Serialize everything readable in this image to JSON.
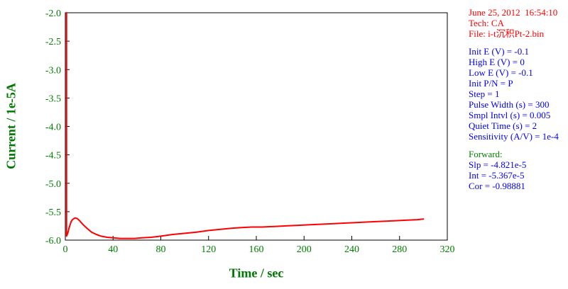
{
  "chart_data": {
    "type": "line",
    "title": "",
    "xlabel": "Time / sec",
    "ylabel": "Current / 1e-5A",
    "xlim": [
      0,
      320
    ],
    "ylim": [
      -6.0,
      -2.0
    ],
    "x_ticks": [
      "0",
      "40",
      "80",
      "120",
      "160",
      "200",
      "240",
      "280",
      "320"
    ],
    "y_ticks": [
      "-2.0",
      "-2.5",
      "-3.0",
      "-3.5",
      "-4.0",
      "-4.5",
      "-5.0",
      "-5.5",
      "-6.0"
    ],
    "grid": false,
    "legend": "none",
    "series": [
      {
        "name": "i-t curve",
        "color": "#ff0000",
        "points": [
          [
            1,
            -2.0
          ],
          [
            1,
            -5.93
          ],
          [
            2,
            -5.88
          ],
          [
            3,
            -5.8
          ],
          [
            4,
            -5.73
          ],
          [
            5,
            -5.67
          ],
          [
            6,
            -5.64
          ],
          [
            8,
            -5.61
          ],
          [
            10,
            -5.62
          ],
          [
            12,
            -5.66
          ],
          [
            15,
            -5.73
          ],
          [
            18,
            -5.79
          ],
          [
            22,
            -5.86
          ],
          [
            26,
            -5.9
          ],
          [
            30,
            -5.93
          ],
          [
            35,
            -5.95
          ],
          [
            40,
            -5.96
          ],
          [
            46,
            -5.97
          ],
          [
            52,
            -5.97
          ],
          [
            58,
            -5.97
          ],
          [
            64,
            -5.96
          ],
          [
            72,
            -5.95
          ],
          [
            80,
            -5.93
          ],
          [
            90,
            -5.9
          ],
          [
            100,
            -5.88
          ],
          [
            110,
            -5.86
          ],
          [
            120,
            -5.83
          ],
          [
            130,
            -5.81
          ],
          [
            140,
            -5.79
          ],
          [
            148,
            -5.78
          ],
          [
            156,
            -5.77
          ],
          [
            165,
            -5.77
          ],
          [
            175,
            -5.76
          ],
          [
            185,
            -5.75
          ],
          [
            195,
            -5.74
          ],
          [
            205,
            -5.73
          ],
          [
            215,
            -5.72
          ],
          [
            225,
            -5.71
          ],
          [
            235,
            -5.7
          ],
          [
            245,
            -5.69
          ],
          [
            255,
            -5.68
          ],
          [
            265,
            -5.67
          ],
          [
            275,
            -5.66
          ],
          [
            285,
            -5.65
          ],
          [
            295,
            -5.64
          ],
          [
            300,
            -5.63
          ]
        ]
      }
    ]
  },
  "colors": {
    "curve": "#ff0000",
    "axis_text": "#008000",
    "axis_title": "#007700",
    "header_text": "#ff0000",
    "parameter_text": "#0000ff",
    "forward_label_text": "#008000",
    "plot_border": "#000000"
  },
  "info_panel": {
    "header_lines": [
      "June 25, 2012  16:54:10",
      "Tech: CA",
      "File: i-t沉积Pt-2.bin"
    ],
    "param_lines": [
      "Init E (V) = -0.1",
      "High E (V) = 0",
      "Low E (V) = -0.1",
      "Init P/N = P",
      "Step = 1",
      "Pulse Width (s) = 300",
      "Smpl Intvl (s) = 0.005",
      "Quiet Time (s) = 2",
      "Sensitivity (A/V) = 1e-4"
    ],
    "forward_label": "Forward:",
    "result_lines": [
      "Slp = -4.821e-5",
      "Int = -5.367e-5",
      "Cor = -0.98881"
    ]
  }
}
